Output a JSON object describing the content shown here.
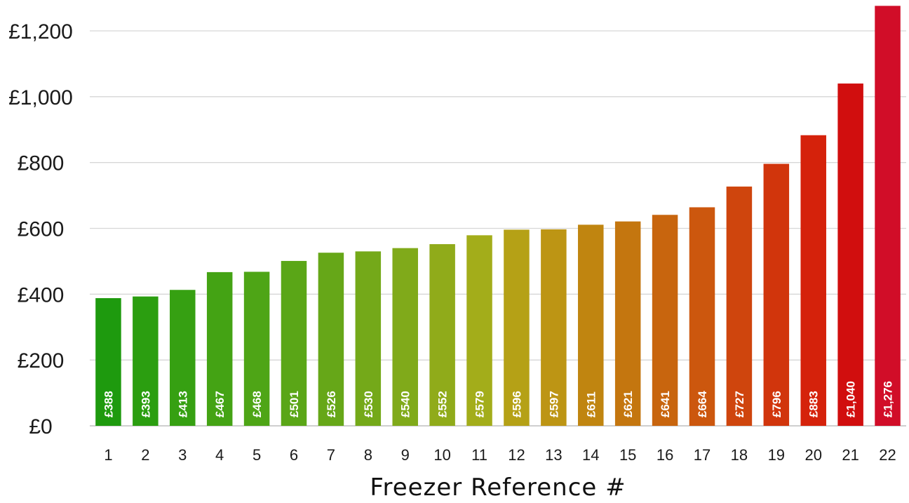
{
  "chart_data": {
    "type": "bar",
    "categories": [
      "1",
      "2",
      "3",
      "4",
      "5",
      "6",
      "7",
      "8",
      "9",
      "10",
      "11",
      "12",
      "13",
      "14",
      "15",
      "16",
      "17",
      "18",
      "19",
      "20",
      "21",
      "22"
    ],
    "values": [
      388,
      393,
      413,
      467,
      468,
      501,
      526,
      530,
      540,
      552,
      579,
      596,
      597,
      611,
      621,
      641,
      664,
      727,
      796,
      883,
      1040,
      1276
    ],
    "data_labels": [
      "£388",
      "£393",
      "£413",
      "£467",
      "£468",
      "£501",
      "£526",
      "£530",
      "£540",
      "£552",
      "£579",
      "£596",
      "£597",
      "£611",
      "£621",
      "£641",
      "£664",
      "£727",
      "£796",
      "£883",
      "£1,040",
      "£1,276"
    ],
    "colors": [
      "#1e9a0e",
      "#2b9e10",
      "#36a012",
      "#44a314",
      "#4ea516",
      "#5aa617",
      "#66a718",
      "#74a919",
      "#80aa1a",
      "#90ab1a",
      "#a3ad1a",
      "#b5a116",
      "#bd9514",
      "#c08510",
      "#c4760f",
      "#c8650e",
      "#cc570e",
      "#cf450d",
      "#d1350c",
      "#d5220b",
      "#d10e0e",
      "#d10d28"
    ],
    "title": "",
    "xlabel": "Freezer Reference #",
    "ylabel": "",
    "ylim": [
      0,
      1276
    ],
    "yticks": [
      0,
      200,
      400,
      600,
      800,
      1000,
      1200
    ],
    "ytick_labels": [
      "£0",
      "£200",
      "£400",
      "£600",
      "£800",
      "£1,000",
      "£1,200"
    ],
    "grid": true,
    "legend": "none"
  }
}
